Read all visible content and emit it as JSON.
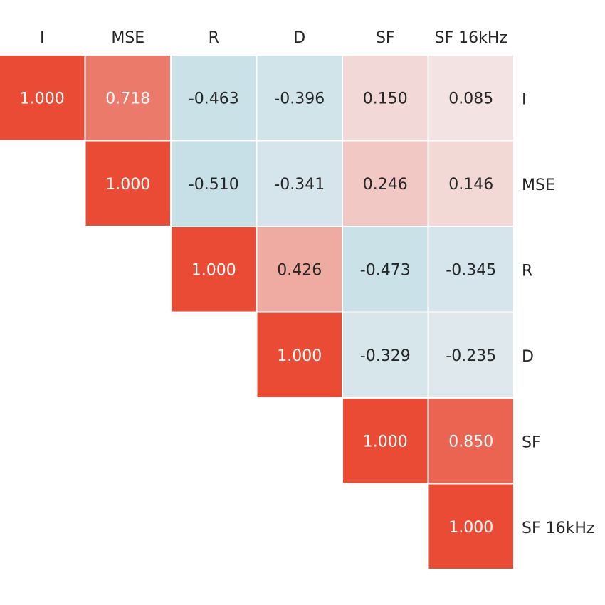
{
  "chart_data": {
    "type": "heatmap",
    "title": "",
    "triangle": "upper",
    "column_labels": [
      "I",
      "MSE",
      "R",
      "D",
      "SF",
      "SF 16kHz"
    ],
    "row_labels": [
      "I",
      "MSE",
      "R",
      "D",
      "SF",
      "SF 16kHz"
    ],
    "column_labels_position": "top",
    "row_labels_position": "right",
    "value_range": [
      -1,
      1
    ],
    "colormap": {
      "negative": "#9bcfdd",
      "zero": "#f4f1f2",
      "positive": "#e94b35"
    },
    "values": [
      [
        1.0,
        0.718,
        -0.463,
        -0.396,
        0.15,
        0.085
      ],
      [
        null,
        1.0,
        -0.51,
        -0.341,
        0.246,
        0.146
      ],
      [
        null,
        null,
        1.0,
        0.426,
        -0.473,
        -0.345
      ],
      [
        null,
        null,
        null,
        1.0,
        -0.329,
        -0.235
      ],
      [
        null,
        null,
        null,
        null,
        1.0,
        0.85
      ],
      [
        null,
        null,
        null,
        null,
        null,
        1.0
      ]
    ],
    "cell_labels": [
      [
        "1.000",
        "0.718",
        "-0.463",
        "-0.396",
        "0.150",
        "0.085"
      ],
      [
        null,
        "1.000",
        "-0.510",
        "-0.341",
        "0.246",
        "0.146"
      ],
      [
        null,
        null,
        "1.000",
        "0.426",
        "-0.473",
        "-0.345"
      ],
      [
        null,
        null,
        null,
        "1.000",
        "-0.329",
        "-0.235"
      ],
      [
        null,
        null,
        null,
        null,
        "1.000",
        "0.850"
      ],
      [
        null,
        null,
        null,
        null,
        null,
        "1.000"
      ]
    ]
  }
}
